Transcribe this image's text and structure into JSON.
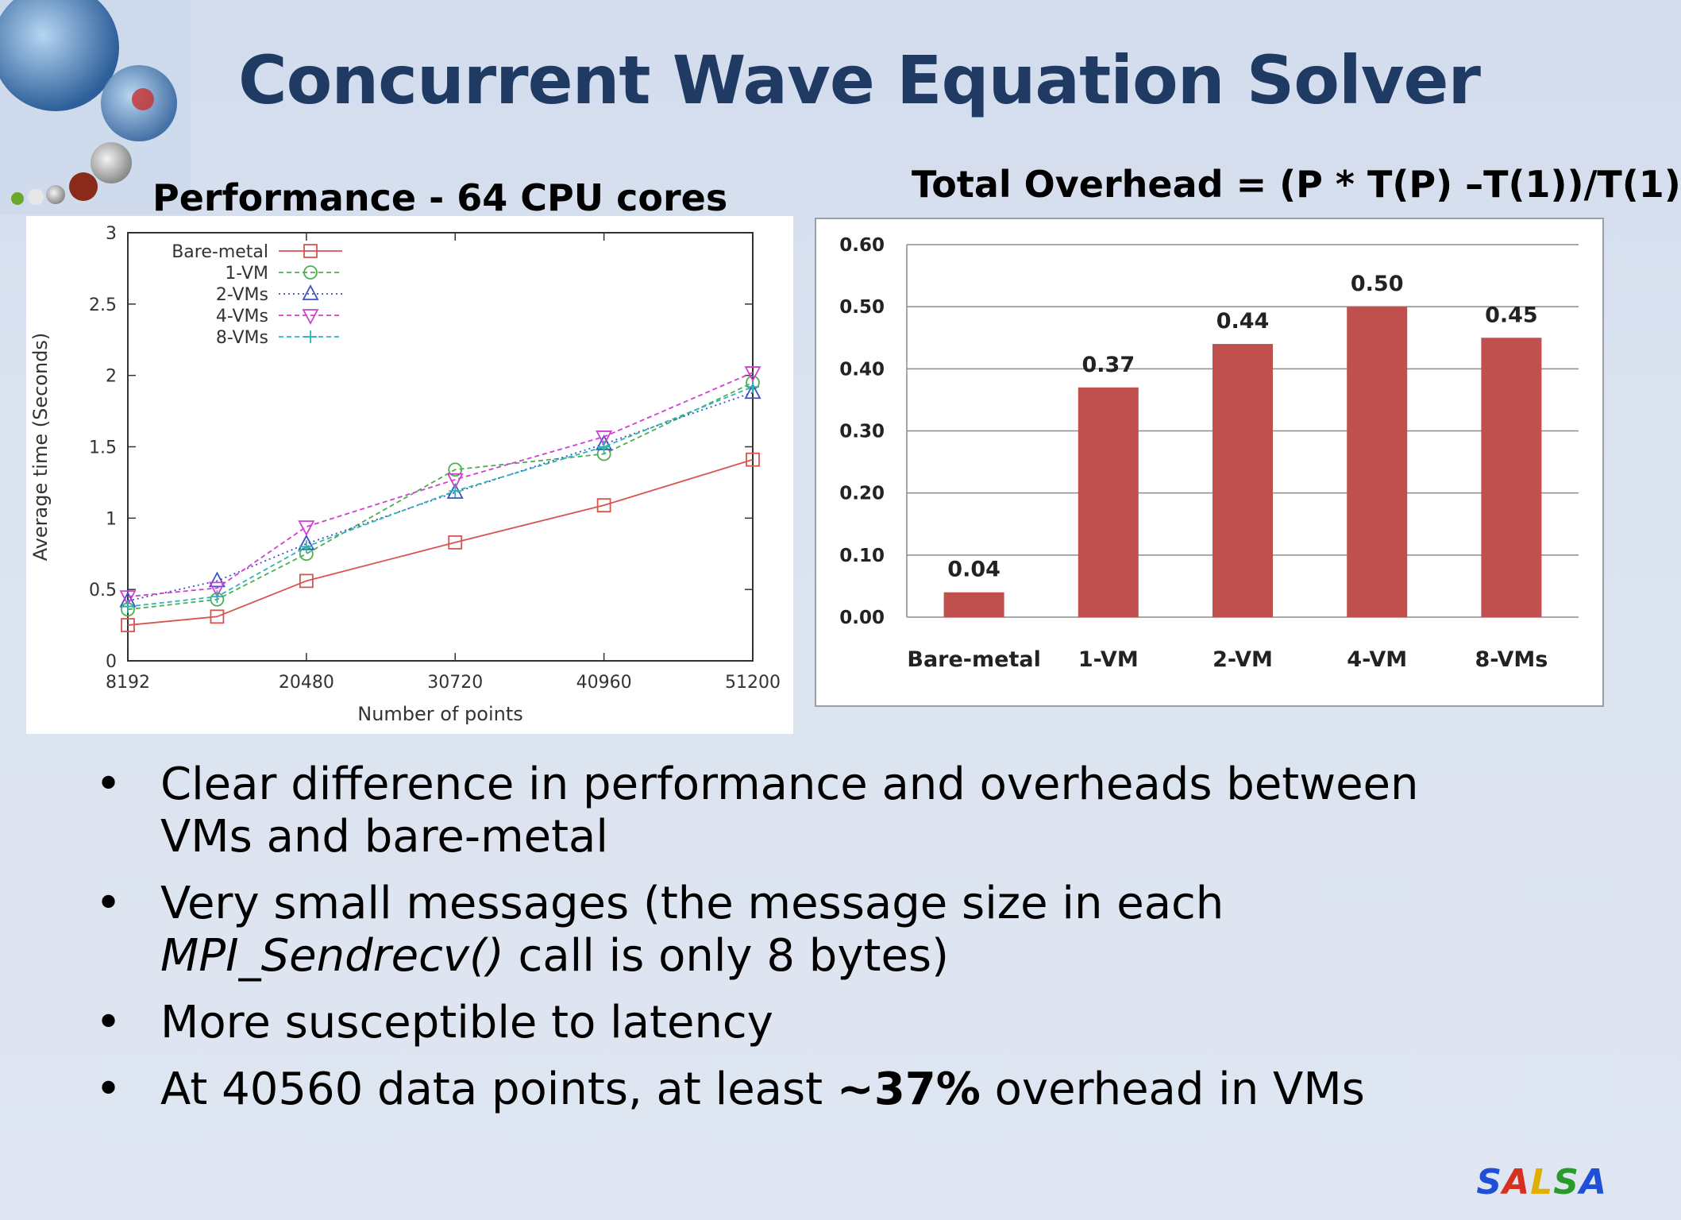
{
  "slide": {
    "title": "Concurrent Wave Equation Solver",
    "left_heading": "Performance -  64 CPU cores",
    "right_heading": "Total Overhead = (P * T(P) –T(1))/T(1)",
    "bullets": [
      {
        "parts": [
          {
            "text": "Clear difference in performance and overheads between VMs and bare-metal",
            "style": "normal"
          }
        ]
      },
      {
        "parts": [
          {
            "text": "Very small messages (the message size in each ",
            "style": "normal"
          },
          {
            "text": "MPI_Sendrecv()",
            "style": "italic"
          },
          {
            "text": " call is only 8 bytes)",
            "style": "normal"
          }
        ]
      },
      {
        "parts": [
          {
            "text": "More susceptible to latency",
            "style": "normal"
          }
        ]
      },
      {
        "parts": [
          {
            "text": "At 40560 data points, at least ",
            "style": "normal"
          },
          {
            "text": "~37%",
            "style": "bold"
          },
          {
            "text": " overhead in VMs",
            "style": "normal"
          }
        ]
      }
    ],
    "brand": {
      "letters": [
        {
          "char": "S",
          "color": "#1f4fd6"
        },
        {
          "char": "A",
          "color": "#d6301f"
        },
        {
          "char": "L",
          "color": "#e0b000"
        },
        {
          "char": "S",
          "color": "#2a9a2a"
        },
        {
          "char": "A",
          "color": "#1f4fd6"
        }
      ]
    }
  },
  "chart_data": [
    {
      "type": "line",
      "title": "",
      "xlabel": "Number of points",
      "ylabel": "Average time (Seconds)",
      "xlim": [
        8192,
        51200
      ],
      "ylim": [
        0,
        3
      ],
      "x_ticks": [
        8192,
        20480,
        30720,
        40960,
        51200
      ],
      "y_ticks": [
        0,
        0.5,
        1,
        1.5,
        2,
        2.5,
        3
      ],
      "y_tick_labels": [
        "0",
        "0.5",
        "1",
        "1.5",
        "2",
        "2.5",
        "3"
      ],
      "legend_position": "top-left",
      "grid": false,
      "series": [
        {
          "name": "Bare-metal",
          "color": "#d9534f",
          "marker": "square",
          "dash": "solid",
          "x": [
            8192,
            14336,
            20480,
            30720,
            40960,
            51200
          ],
          "y": [
            0.25,
            0.31,
            0.56,
            0.83,
            1.09,
            1.41
          ]
        },
        {
          "name": "1-VM",
          "color": "#4caf50",
          "marker": "circle",
          "dash": "dashed",
          "x": [
            8192,
            14336,
            20480,
            30720,
            40960,
            51200
          ],
          "y": [
            0.36,
            0.43,
            0.75,
            1.34,
            1.45,
            1.95
          ]
        },
        {
          "name": "2-VMs",
          "color": "#3b50c8",
          "marker": "triangle-up",
          "dash": "dotted",
          "x": [
            8192,
            14336,
            20480,
            30720,
            40960,
            51200
          ],
          "y": [
            0.42,
            0.56,
            0.82,
            1.18,
            1.52,
            1.88
          ]
        },
        {
          "name": "4-VMs",
          "color": "#d040d0",
          "marker": "triangle-down",
          "dash": "dashed",
          "x": [
            8192,
            14336,
            20480,
            30720,
            40960,
            51200
          ],
          "y": [
            0.45,
            0.51,
            0.94,
            1.27,
            1.57,
            2.02
          ]
        },
        {
          "name": "8-VMs",
          "color": "#2bb5b5",
          "marker": "plus",
          "dash": "dashed",
          "x": [
            8192,
            14336,
            20480,
            30720,
            40960,
            51200
          ],
          "y": [
            0.38,
            0.45,
            0.8,
            1.19,
            1.5,
            1.92
          ]
        }
      ]
    },
    {
      "type": "bar",
      "title": "",
      "categories": [
        "Bare-metal",
        "1-VM",
        "2-VM",
        "4-VM",
        "8-VMs"
      ],
      "values": [
        0.04,
        0.37,
        0.44,
        0.5,
        0.45
      ],
      "value_labels": [
        "0.04",
        "0.37",
        "0.44",
        "0.50",
        "0.45"
      ],
      "ylim": [
        0,
        0.6
      ],
      "y_ticks": [
        0,
        0.1,
        0.2,
        0.3,
        0.4,
        0.5,
        0.6
      ],
      "y_tick_labels": [
        "0.00",
        "0.10",
        "0.20",
        "0.30",
        "0.40",
        "0.50",
        "0.60"
      ],
      "bar_color": "#c0504d",
      "grid": true
    }
  ]
}
